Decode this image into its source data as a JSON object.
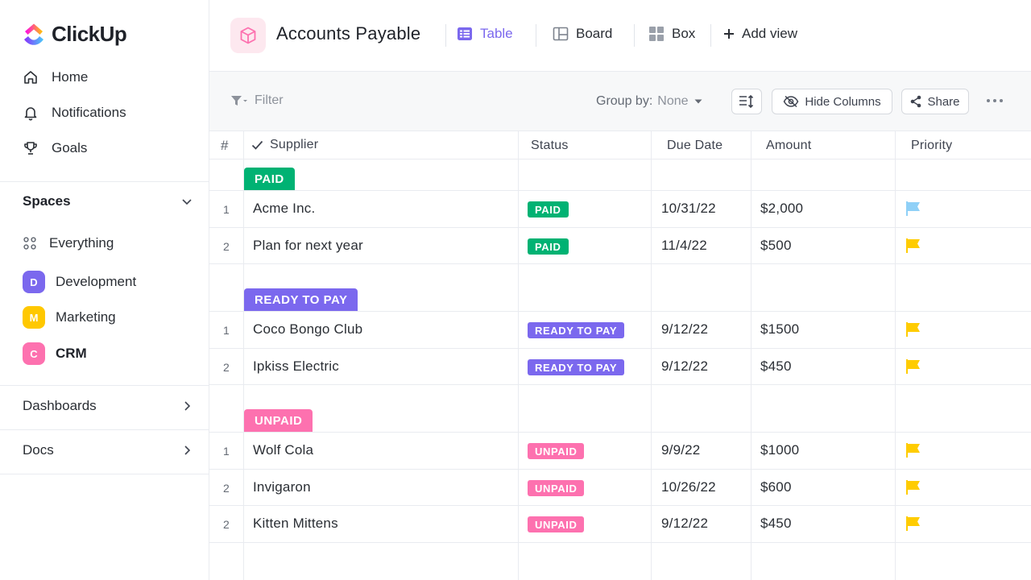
{
  "colors": {
    "brand_purple": "#7b68ee",
    "paid_green": "#00b273",
    "ready_purple": "#7b68ee",
    "unpaid_pink": "#fd71af",
    "flag_blue": "#8fd0f7",
    "flag_yellow": "#ffcc00",
    "space_dev": "#7b68ee",
    "space_marketing": "#ffc800",
    "space_crm": "#fd71af"
  },
  "app": {
    "name": "ClickUp"
  },
  "sidebar": {
    "nav": [
      {
        "label": "Home",
        "icon": "home-icon"
      },
      {
        "label": "Notifications",
        "icon": "bell-icon"
      },
      {
        "label": "Goals",
        "icon": "trophy-icon"
      }
    ],
    "spaces_title": "Spaces",
    "everything_label": "Everything",
    "spaces": [
      {
        "initial": "D",
        "label": "Development"
      },
      {
        "initial": "M",
        "label": "Marketing"
      },
      {
        "initial": "C",
        "label": "CRM"
      }
    ],
    "dashboards_label": "Dashboards",
    "docs_label": "Docs"
  },
  "header": {
    "title": "Accounts Payable",
    "views": [
      {
        "label": "Table",
        "icon": "table-icon",
        "active": true
      },
      {
        "label": "Board",
        "icon": "board-icon",
        "active": false
      },
      {
        "label": "Box",
        "icon": "box-icon",
        "active": false
      }
    ],
    "add_view_label": "Add view"
  },
  "toolbar": {
    "filter_label": "Filter",
    "group_by_label": "Group by:",
    "group_by_value": "None",
    "hide_columns_label": "Hide Columns",
    "share_label": "Share"
  },
  "table": {
    "columns": [
      "#",
      "Supplier",
      "Status",
      "Due Date",
      "Amount",
      "Priority"
    ],
    "groups": [
      {
        "name": "PAID",
        "color": "#00b273",
        "rows": [
          {
            "num": "1",
            "supplier": "Acme Inc.",
            "status": "PAID",
            "due": "10/31/22",
            "amount": "$2,000",
            "priority": "flag-blue"
          },
          {
            "num": "2",
            "supplier": "Plan for next year",
            "status": "PAID",
            "due": "11/4/22",
            "amount": "$500",
            "priority": "flag-yellow"
          }
        ]
      },
      {
        "name": "READY TO PAY",
        "color": "#7b68ee",
        "rows": [
          {
            "num": "1",
            "supplier": "Coco Bongo Club",
            "status": "READY TO PAY",
            "due": "9/12/22",
            "amount": "$1500",
            "priority": "flag-yellow"
          },
          {
            "num": "2",
            "supplier": "Ipkiss Electric",
            "status": "READY TO PAY",
            "due": "9/12/22",
            "amount": "$450",
            "priority": "flag-yellow"
          }
        ]
      },
      {
        "name": "UNPAID",
        "color": "#fd71af",
        "rows": [
          {
            "num": "1",
            "supplier": "Wolf Cola",
            "status": "UNPAID",
            "due": "9/9/22",
            "amount": "$1000",
            "priority": "flag-yellow"
          },
          {
            "num": "2",
            "supplier": "Invigaron",
            "status": "UNPAID",
            "due": "10/26/22",
            "amount": "$600",
            "priority": "flag-yellow"
          },
          {
            "num": "2",
            "supplier": "Kitten Mittens",
            "status": "UNPAID",
            "due": "9/12/22",
            "amount": "$450",
            "priority": "flag-yellow"
          }
        ]
      }
    ]
  }
}
